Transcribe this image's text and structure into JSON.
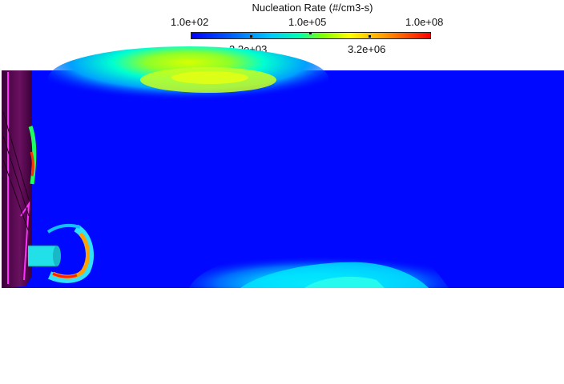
{
  "legend": {
    "title": "Nucleation Rate (#/cm3-s)",
    "ticks_top": [
      "1.0e+02",
      "1.0e+05",
      "1.0e+08"
    ],
    "ticks_bottom": [
      "3.2e+03",
      "3.2e+06"
    ]
  },
  "colors": {
    "low": "#0000ff",
    "mid": "#7fff00",
    "high": "#ff0000",
    "geometry": "#5a0050"
  }
}
